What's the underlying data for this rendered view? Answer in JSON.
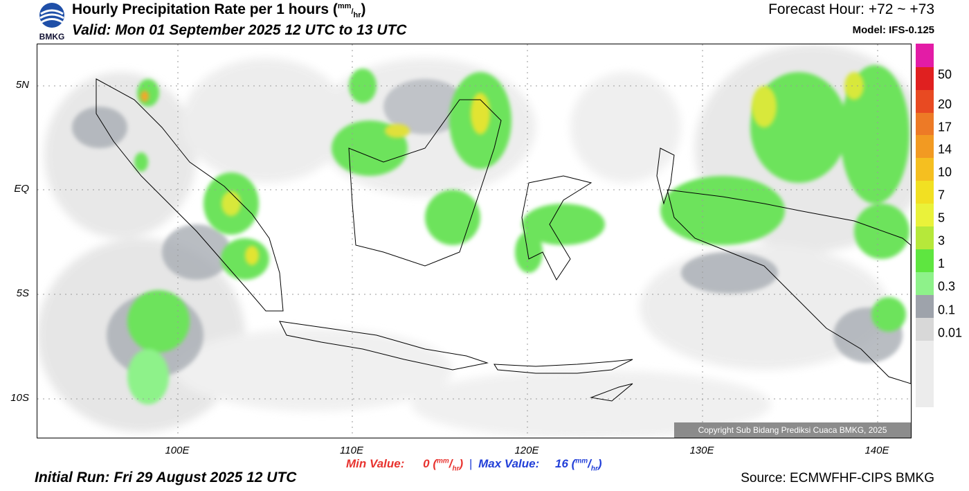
{
  "header": {
    "title_main": "Hourly Precipitation Rate per 1 hours (",
    "title_unit_mm": "mm",
    "title_unit_sep": "/",
    "title_unit_hr": "hr",
    "title_close": ")",
    "valid": "Valid: Mon 01 September 2025 12 UTC to 13 UTC",
    "forecast_hour": "Forecast Hour: +72 ~ +73",
    "model": "Model: IFS-0.125",
    "logo_text": "BMKG"
  },
  "footer": {
    "min_label": "Min Value:",
    "min_value": "0",
    "max_label": "Max Value:",
    "max_value": "16",
    "unit_mm": "mm",
    "unit_hr": "hr",
    "separator": "|",
    "initial_run": "Initial Run: Fri 29 August 2025 12 UTC",
    "source": "Source: ECMWFHF-CIPS BMKG",
    "copyright": "Copyright Sub Bidang Prediksi Cuaca BMKG, 2025"
  },
  "axes": {
    "lat_labels": [
      "5N",
      "EQ",
      "5S",
      "10S"
    ],
    "lon_labels": [
      "100E",
      "110E",
      "120E",
      "130E",
      "140E"
    ]
  },
  "legend": {
    "labels": [
      "50",
      "20",
      "17",
      "14",
      "10",
      "7",
      "5",
      "3",
      "1",
      "0.3",
      "0.1",
      "0.01"
    ],
    "colors": [
      "#e31ca6",
      "#e02020",
      "#e84a22",
      "#ed7a26",
      "#f29a22",
      "#f5bf20",
      "#f2e022",
      "#eaf23a",
      "#b6e83a",
      "#5ee640",
      "#8ef28a",
      "#9ea3ab",
      "#d8d8d8",
      "#ececec"
    ]
  }
}
